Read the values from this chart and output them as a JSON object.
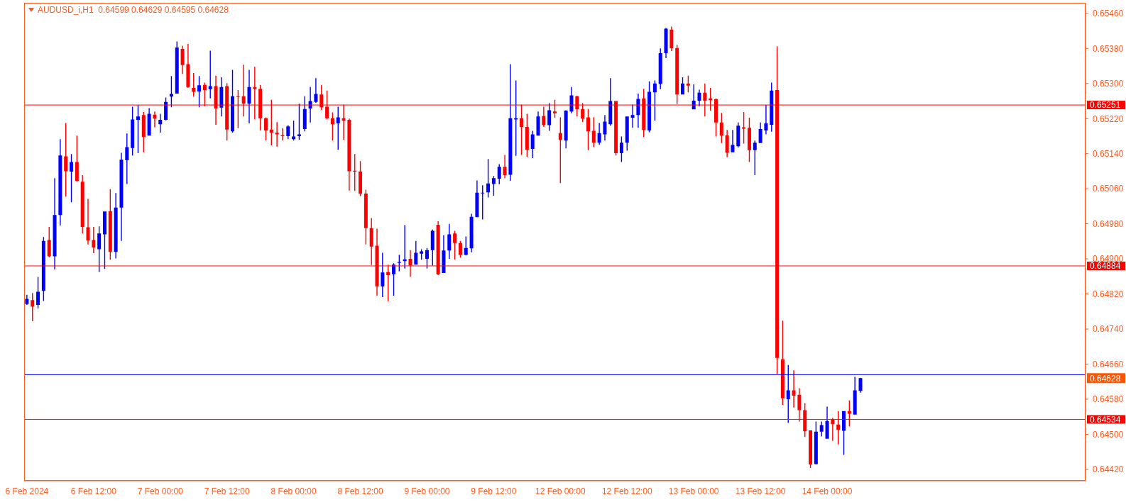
{
  "chart_data": {
    "type": "candlestick",
    "title": "AUDUSD_i,H1  0.64599 0.64629 0.64595 0.64628",
    "categories": [
      "6 Feb 2024",
      null,
      null,
      null,
      null,
      null,
      null,
      null,
      null,
      null,
      null,
      null,
      "6 Feb 12:00",
      null,
      null,
      null,
      null,
      null,
      null,
      null,
      null,
      null,
      null,
      null,
      "7 Feb 00:00",
      null,
      null,
      null,
      null,
      null,
      null,
      null,
      null,
      null,
      null,
      null,
      "7 Feb 12:00",
      null,
      null,
      null,
      null,
      null,
      null,
      null,
      null,
      null,
      null,
      null,
      "8 Feb 00:00",
      null,
      null,
      null,
      null,
      null,
      null,
      null,
      null,
      null,
      null,
      null,
      "8 Feb 12:00",
      null,
      null,
      null,
      null,
      null,
      null,
      null,
      null,
      null,
      null,
      null,
      "9 Feb 00:00",
      null,
      null,
      null,
      null,
      null,
      null,
      null,
      null,
      null,
      null,
      null,
      "9 Feb 12:00",
      null,
      null,
      null,
      null,
      null,
      null,
      null,
      null,
      null,
      null,
      null,
      "12 Feb 00:00",
      null,
      null,
      null,
      null,
      null,
      null,
      null,
      null,
      null,
      null,
      null,
      "12 Feb 12:00",
      null,
      null,
      null,
      null,
      null,
      null,
      null,
      null,
      null,
      null,
      null,
      "13 Feb 00:00",
      null,
      null,
      null,
      null,
      null,
      null,
      null,
      null,
      null,
      null,
      null,
      "13 Feb 12:00",
      null,
      null,
      null,
      null,
      null,
      null,
      null,
      null,
      null,
      null,
      null,
      "14 Feb 00:00",
      null,
      null,
      null,
      null,
      null,
      null,
      null,
      null,
      null,
      null,
      null,
      null,
      null,
      null,
      null,
      null,
      null,
      null,
      null,
      null,
      null,
      null,
      null,
      null,
      null,
      null,
      null,
      null,
      null,
      null,
      null,
      null,
      null,
      null,
      null,
      null,
      null,
      null,
      null,
      null,
      null,
      null,
      null,
      null,
      null,
      null
    ],
    "ohlc": [
      [
        0.64797,
        0.64818,
        0.64795,
        0.64809
      ],
      [
        0.64806,
        0.64822,
        0.64758,
        0.64791
      ],
      [
        0.64795,
        0.64859,
        0.64787,
        0.64825
      ],
      [
        0.64827,
        0.6495,
        0.64804,
        0.64941
      ],
      [
        0.64943,
        0.64973,
        0.64904,
        0.64906
      ],
      [
        0.64906,
        0.65084,
        0.64876,
        0.65
      ],
      [
        0.65,
        0.65173,
        0.64976,
        0.65136
      ],
      [
        0.65134,
        0.6521,
        0.65042,
        0.651
      ],
      [
        0.65099,
        0.65139,
        0.65029,
        0.65121
      ],
      [
        0.65121,
        0.65181,
        0.65076,
        0.65078
      ],
      [
        0.65076,
        0.65091,
        0.64958,
        0.64973
      ],
      [
        0.64972,
        0.65037,
        0.64933,
        0.64942
      ],
      [
        0.64943,
        0.64973,
        0.64913,
        0.64926
      ],
      [
        0.64922,
        0.64974,
        0.6487,
        0.64958
      ],
      [
        0.64956,
        0.65008,
        0.64877,
        0.65008
      ],
      [
        0.65009,
        0.65059,
        0.64898,
        0.64916
      ],
      [
        0.64916,
        0.6505,
        0.64901,
        0.65017
      ],
      [
        0.65017,
        0.65142,
        0.64941,
        0.65126
      ],
      [
        0.65125,
        0.65186,
        0.65071,
        0.65155
      ],
      [
        0.65153,
        0.65247,
        0.65136,
        0.65218
      ],
      [
        0.65217,
        0.65251,
        0.65141,
        0.65225
      ],
      [
        0.65228,
        0.65235,
        0.65143,
        0.65178
      ],
      [
        0.65181,
        0.65244,
        0.65181,
        0.65231
      ],
      [
        0.65229,
        0.65236,
        0.652,
        0.6522
      ],
      [
        0.65207,
        0.65231,
        0.65188,
        0.65217
      ],
      [
        0.65217,
        0.65268,
        0.65216,
        0.65258
      ],
      [
        0.6527,
        0.65317,
        0.65246,
        0.65276
      ],
      [
        0.65277,
        0.65396,
        0.65277,
        0.65382
      ],
      [
        0.65379,
        0.65386,
        0.65322,
        0.65342
      ],
      [
        0.65344,
        0.6539,
        0.6529,
        0.65292
      ],
      [
        0.6529,
        0.65324,
        0.6527,
        0.65281
      ],
      [
        0.65282,
        0.65317,
        0.65246,
        0.65296
      ],
      [
        0.65297,
        0.65302,
        0.65248,
        0.65285
      ],
      [
        0.65287,
        0.65375,
        0.65266,
        0.65294
      ],
      [
        0.65294,
        0.65318,
        0.65206,
        0.65243
      ],
      [
        0.65245,
        0.65314,
        0.65225,
        0.65292
      ],
      [
        0.65294,
        0.65301,
        0.6517,
        0.65195
      ],
      [
        0.65191,
        0.65331,
        0.65188,
        0.65271
      ],
      [
        0.65271,
        0.65285,
        0.65198,
        0.6527
      ],
      [
        0.65271,
        0.65343,
        0.65225,
        0.65254
      ],
      [
        0.65254,
        0.65331,
        0.65209,
        0.65292
      ],
      [
        0.65292,
        0.65338,
        0.65218,
        0.65288
      ],
      [
        0.65288,
        0.65297,
        0.65193,
        0.65221
      ],
      [
        0.65221,
        0.65223,
        0.6517,
        0.65193
      ],
      [
        0.65195,
        0.65263,
        0.65159,
        0.65188
      ],
      [
        0.65188,
        0.65212,
        0.65156,
        0.65184
      ],
      [
        0.65182,
        0.65198,
        0.6517,
        0.6518
      ],
      [
        0.6518,
        0.65205,
        0.65173,
        0.65202
      ],
      [
        0.65173,
        0.65215,
        0.6517,
        0.65179
      ],
      [
        0.6518,
        0.65254,
        0.65172,
        0.65184
      ],
      [
        0.65196,
        0.65271,
        0.65191,
        0.65242
      ],
      [
        0.65243,
        0.65292,
        0.65211,
        0.6526
      ],
      [
        0.65258,
        0.65312,
        0.65256,
        0.65276
      ],
      [
        0.65275,
        0.65297,
        0.6524,
        0.65246
      ],
      [
        0.65247,
        0.65284,
        0.65218,
        0.65221
      ],
      [
        0.65221,
        0.65234,
        0.6517,
        0.65207
      ],
      [
        0.65209,
        0.65247,
        0.65149,
        0.65223
      ],
      [
        0.65221,
        0.65252,
        0.65172,
        0.65215
      ],
      [
        0.65217,
        0.6522,
        0.65056,
        0.651
      ],
      [
        0.65101,
        0.65139,
        0.65055,
        0.65099
      ],
      [
        0.65099,
        0.65123,
        0.65043,
        0.65049
      ],
      [
        0.65049,
        0.65058,
        0.64933,
        0.6497
      ],
      [
        0.6497,
        0.64993,
        0.64886,
        0.64928
      ],
      [
        0.6493,
        0.64969,
        0.64816,
        0.64837
      ],
      [
        0.64837,
        0.64914,
        0.64813,
        0.64869
      ],
      [
        0.6487,
        0.64887,
        0.64803,
        0.64863
      ],
      [
        0.64865,
        0.6489,
        0.64816,
        0.64887
      ],
      [
        0.64891,
        0.64909,
        0.64872,
        0.64893
      ],
      [
        0.64895,
        0.64977,
        0.64878,
        0.64899
      ],
      [
        0.649,
        0.6492,
        0.64859,
        0.64885
      ],
      [
        0.64887,
        0.64941,
        0.64887,
        0.64914
      ],
      [
        0.64912,
        0.64922,
        0.64898,
        0.64917
      ],
      [
        0.649,
        0.64925,
        0.64878,
        0.6492
      ],
      [
        0.6492,
        0.64967,
        0.64885,
        0.64964
      ],
      [
        0.64978,
        0.64986,
        0.64863,
        0.64865
      ],
      [
        0.64868,
        0.64954,
        0.64868,
        0.64919
      ],
      [
        0.64919,
        0.6498,
        0.649,
        0.64956
      ],
      [
        0.64958,
        0.64964,
        0.64898,
        0.64936
      ],
      [
        0.64936,
        0.64941,
        0.64903,
        0.64909
      ],
      [
        0.64909,
        0.64951,
        0.64908,
        0.64925
      ],
      [
        0.64924,
        0.65003,
        0.64915,
        0.64996
      ],
      [
        0.64995,
        0.65079,
        0.64995,
        0.65051
      ],
      [
        0.6505,
        0.65068,
        0.6499,
        0.65051
      ],
      [
        0.65052,
        0.65128,
        0.6504,
        0.65072
      ],
      [
        0.65071,
        0.65089,
        0.65044,
        0.65084
      ],
      [
        0.65083,
        0.65116,
        0.6507,
        0.6511
      ],
      [
        0.6511,
        0.65137,
        0.65084,
        0.65091
      ],
      [
        0.65092,
        0.65344,
        0.65078,
        0.65221
      ],
      [
        0.65218,
        0.65307,
        0.65135,
        0.65221
      ],
      [
        0.65221,
        0.65252,
        0.65137,
        0.65201
      ],
      [
        0.65201,
        0.65231,
        0.65133,
        0.65149
      ],
      [
        0.65151,
        0.65192,
        0.6513,
        0.65184
      ],
      [
        0.65181,
        0.65236,
        0.65181,
        0.65225
      ],
      [
        0.65226,
        0.65247,
        0.65201,
        0.65205
      ],
      [
        0.65205,
        0.65255,
        0.65192,
        0.65239
      ],
      [
        0.65236,
        0.65263,
        0.65222,
        0.65232
      ],
      [
        0.65187,
        0.65223,
        0.65073,
        0.65171
      ],
      [
        0.6517,
        0.65239,
        0.65152,
        0.65238
      ],
      [
        0.65236,
        0.65292,
        0.65232,
        0.65273
      ],
      [
        0.65271,
        0.65272,
        0.65225,
        0.65241
      ],
      [
        0.65242,
        0.65255,
        0.65212,
        0.6522
      ],
      [
        0.65223,
        0.65242,
        0.65148,
        0.65191
      ],
      [
        0.65192,
        0.65223,
        0.65155,
        0.65165
      ],
      [
        0.65165,
        0.6521,
        0.6516,
        0.65187
      ],
      [
        0.65184,
        0.65228,
        0.6517,
        0.65213
      ],
      [
        0.65207,
        0.65312,
        0.65204,
        0.6526
      ],
      [
        0.6526,
        0.6526,
        0.65136,
        0.65141
      ],
      [
        0.65141,
        0.65179,
        0.65121,
        0.65165
      ],
      [
        0.65165,
        0.65225,
        0.65147,
        0.65225
      ],
      [
        0.65222,
        0.65252,
        0.65199,
        0.65228
      ],
      [
        0.65228,
        0.65277,
        0.65199,
        0.65265
      ],
      [
        0.65266,
        0.65288,
        0.65178,
        0.65194
      ],
      [
        0.65193,
        0.65305,
        0.65189,
        0.65281
      ],
      [
        0.6528,
        0.65307,
        0.65215,
        0.653
      ],
      [
        0.65299,
        0.6538,
        0.65287,
        0.65369
      ],
      [
        0.65369,
        0.65427,
        0.65358,
        0.65425
      ],
      [
        0.65423,
        0.6543,
        0.65374,
        0.6538
      ],
      [
        0.65381,
        0.65388,
        0.65253,
        0.65275
      ],
      [
        0.65275,
        0.65314,
        0.65275,
        0.653
      ],
      [
        0.653,
        0.65318,
        0.6528,
        0.65295
      ],
      [
        0.65241,
        0.65298,
        0.65241,
        0.65261
      ],
      [
        0.65261,
        0.65286,
        0.65248,
        0.65279
      ],
      [
        0.65279,
        0.653,
        0.65225,
        0.65261
      ],
      [
        0.65266,
        0.6529,
        0.65238,
        0.65262
      ],
      [
        0.65264,
        0.65266,
        0.65179,
        0.65211
      ],
      [
        0.65211,
        0.65233,
        0.65164,
        0.65181
      ],
      [
        0.65182,
        0.65194,
        0.65132,
        0.65142
      ],
      [
        0.65143,
        0.65194,
        0.65143,
        0.6516
      ],
      [
        0.65157,
        0.65211,
        0.65154,
        0.65204
      ],
      [
        0.652,
        0.65235,
        0.65163,
        0.65197
      ],
      [
        0.65199,
        0.65222,
        0.65121,
        0.65148
      ],
      [
        0.65148,
        0.6517,
        0.65091,
        0.65165
      ],
      [
        0.65164,
        0.65211,
        0.65164,
        0.65196
      ],
      [
        0.65193,
        0.65251,
        0.65184,
        0.65209
      ],
      [
        0.65206,
        0.65302,
        0.6519,
        0.65284
      ],
      [
        0.65285,
        0.65385,
        0.64638,
        0.64674
      ],
      [
        0.64671,
        0.64759,
        0.64567,
        0.64582
      ],
      [
        0.6458,
        0.64658,
        0.64526,
        0.646
      ],
      [
        0.646,
        0.64646,
        0.64561,
        0.64588
      ],
      [
        0.6459,
        0.64605,
        0.64529,
        0.64555
      ],
      [
        0.64555,
        0.64571,
        0.64494,
        0.64507
      ],
      [
        0.64509,
        0.64509,
        0.64423,
        0.64431
      ],
      [
        0.64432,
        0.64529,
        0.64431,
        0.64506
      ],
      [
        0.64506,
        0.64529,
        0.64495,
        0.64521
      ],
      [
        0.6449,
        0.64563,
        0.6449,
        0.6453
      ],
      [
        0.64533,
        0.64537,
        0.64485,
        0.64523
      ],
      [
        0.64522,
        0.64553,
        0.64477,
        0.6451
      ],
      [
        0.64508,
        0.64553,
        0.64453,
        0.64553
      ],
      [
        0.64553,
        0.64577,
        0.64518,
        0.64547
      ],
      [
        0.64545,
        0.64631,
        0.64545,
        0.646
      ],
      [
        0.64599,
        0.64629,
        0.64595,
        0.64628
      ],
      null,
      null,
      null,
      null,
      null,
      null,
      null,
      null,
      null,
      null,
      null,
      null,
      null,
      null,
      null,
      null,
      null,
      null,
      null,
      null,
      null,
      null,
      null,
      null,
      null,
      null,
      null,
      null,
      null,
      null,
      null,
      null,
      null,
      null,
      null,
      null,
      null,
      null,
      null,
      null
    ],
    "colors": [
      "#0000ff",
      "#ff0000",
      "#0000ff",
      "#0000ff",
      "#ff0000",
      "#0000ff",
      "#0000ff",
      "#ff0000",
      "#0000ff",
      "#ff0000",
      "#ff0000",
      "#ff0000",
      "#ff0000",
      "#0000ff",
      "#0000ff",
      "#ff0000",
      "#0000ff",
      "#0000ff",
      "#0000ff",
      "#0000ff",
      "#0000ff",
      "#ff0000",
      "#0000ff",
      "#ff0000",
      "#0000ff",
      "#0000ff",
      "#0000ff",
      "#0000ff",
      "#ff0000",
      "#ff0000",
      "#ff0000",
      "#0000ff",
      "#ff0000",
      "#0000ff",
      "#ff0000",
      "#0000ff",
      "#ff0000",
      "#0000ff",
      "#ff0000",
      "#ff0000",
      "#0000ff",
      "#ff0000",
      "#ff0000",
      "#ff0000",
      "#ff0000",
      "#ff0000",
      "#ff0000",
      "#0000ff",
      "#0000ff",
      "#0000ff",
      "#0000ff",
      "#0000ff",
      "#0000ff",
      "#ff0000",
      "#ff0000",
      "#ff0000",
      "#0000ff",
      "#ff0000",
      "#ff0000",
      "#ff0000",
      "#ff0000",
      "#ff0000",
      "#ff0000",
      "#ff0000",
      "#0000ff",
      "#ff0000",
      "#0000ff",
      "#0000ff",
      "#0000ff",
      "#ff0000",
      "#0000ff",
      "#0000ff",
      "#0000ff",
      "#0000ff",
      "#ff0000",
      "#0000ff",
      "#0000ff",
      "#ff0000",
      "#ff0000",
      "#0000ff",
      "#0000ff",
      "#0000ff",
      "#0000ff",
      "#0000ff",
      "#0000ff",
      "#0000ff",
      "#ff0000",
      "#0000ff",
      "#0000ff",
      "#ff0000",
      "#ff0000",
      "#0000ff",
      "#0000ff",
      "#ff0000",
      "#0000ff",
      "#ff0000",
      "#ff0000",
      "#0000ff",
      "#0000ff",
      "#ff0000",
      "#ff0000",
      "#ff0000",
      "#ff0000",
      "#0000ff",
      "#0000ff",
      "#0000ff",
      "#ff0000",
      "#0000ff",
      "#0000ff",
      "#0000ff",
      "#0000ff",
      "#ff0000",
      "#0000ff",
      "#0000ff",
      "#0000ff",
      "#0000ff",
      "#ff0000",
      "#ff0000",
      "#0000ff",
      "#ff0000",
      "#0000ff",
      "#0000ff",
      "#ff0000",
      "#ff0000",
      "#ff0000",
      "#ff0000",
      "#ff0000",
      "#0000ff",
      "#0000ff",
      "#ff0000",
      "#ff0000",
      "#0000ff",
      "#0000ff",
      "#0000ff",
      "#0000ff",
      "#ff0000",
      "#ff0000",
      "#0000ff",
      "#ff0000",
      "#ff0000",
      "#ff0000",
      "#ff0000",
      "#0000ff",
      "#0000ff",
      "#0000ff",
      "#ff0000",
      "#ff0000",
      "#0000ff",
      "#ff0000",
      "#0000ff",
      "#0000ff",
      null,
      null,
      null,
      null,
      null,
      null,
      null,
      null,
      null,
      null,
      null,
      null,
      null,
      null,
      null,
      null,
      null,
      null,
      null,
      null,
      null,
      null,
      null,
      null,
      null,
      null,
      null,
      null,
      null,
      null,
      null,
      null,
      null,
      null,
      null,
      null,
      null,
      null,
      null,
      null
    ],
    "ylim": [
      0.64394,
      0.65484
    ],
    "yticks": [
      {
        "value": 0.6442,
        "label": "0.64420"
      },
      {
        "value": 0.645,
        "label": "0.64500"
      },
      {
        "value": 0.6458,
        "label": "0.64580"
      },
      {
        "value": 0.6466,
        "label": "0.64660"
      },
      {
        "value": 0.6474,
        "label": "0.64740"
      },
      {
        "value": 0.6482,
        "label": "0.64820"
      },
      {
        "value": 0.649,
        "label": "0.64900"
      },
      {
        "value": 0.6498,
        "label": "0.64980"
      },
      {
        "value": 0.6506,
        "label": "0.65060"
      },
      {
        "value": 0.6514,
        "label": "0.65140"
      },
      {
        "value": 0.6522,
        "label": "0.65220"
      },
      {
        "value": 0.653,
        "label": "0.65300"
      },
      {
        "value": 0.6538,
        "label": "0.65380"
      },
      {
        "value": 0.6546,
        "label": "0.65460"
      }
    ],
    "ref_lines": [
      {
        "axis": "y",
        "value": 0.65251,
        "label": "0.65251",
        "color": "#ff0000"
      },
      {
        "axis": "y",
        "value": 0.64884,
        "label": "0.64884",
        "color": "#ff0000"
      },
      {
        "axis": "y",
        "value": 0.64534,
        "label": "0.64534",
        "color": "#ff0000"
      },
      {
        "axis": "y",
        "value": 0.64636,
        "color": "#0000ff"
      }
    ],
    "annotations": [
      "0.64628"
    ]
  }
}
